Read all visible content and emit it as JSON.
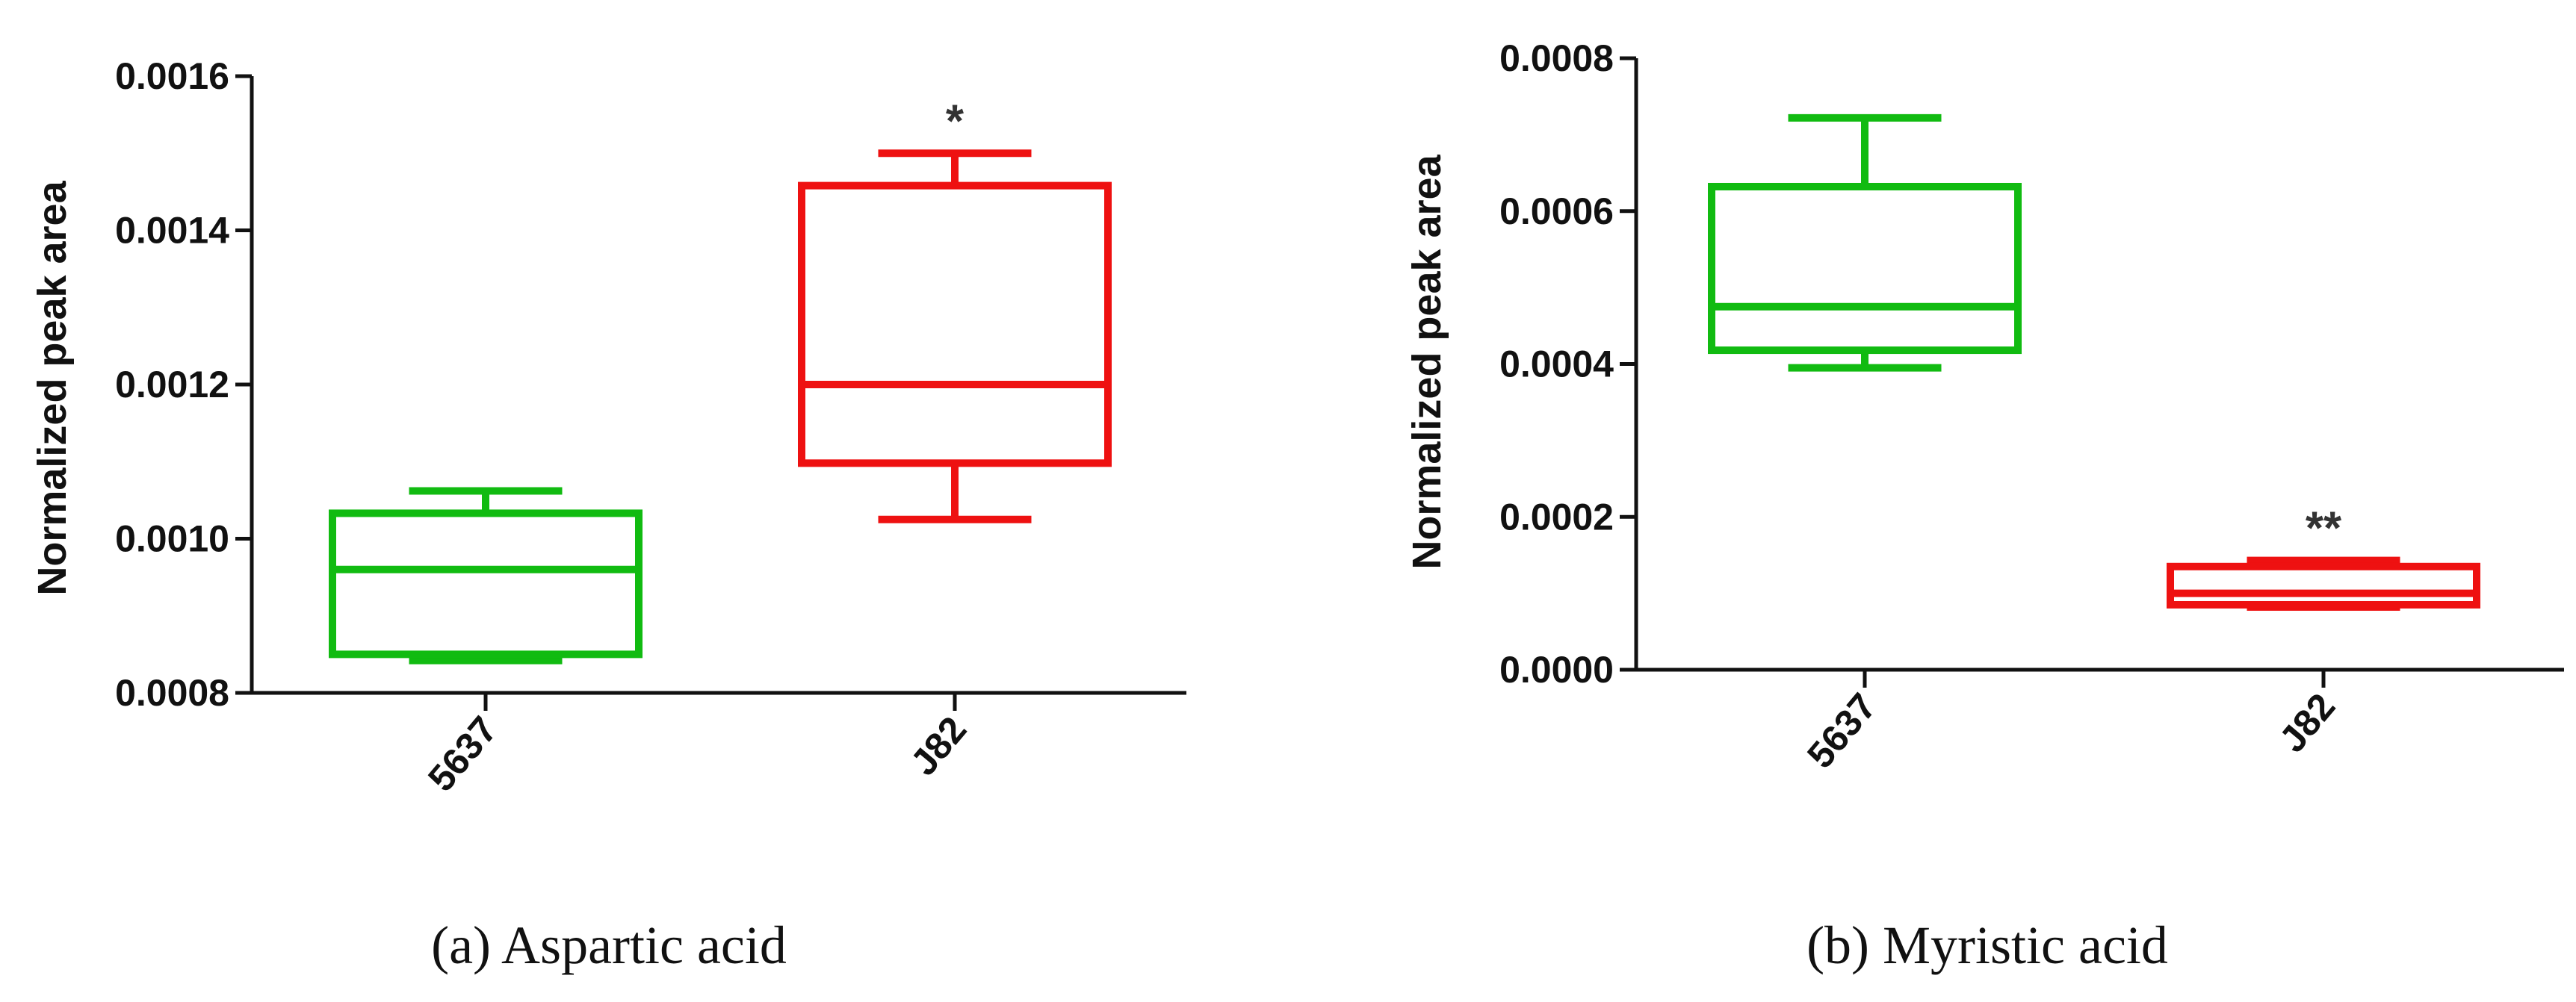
{
  "chart_data": [
    {
      "type": "box",
      "caption": "(a) Aspartic acid",
      "ylabel": "Normalized peak area",
      "xlabel": "",
      "ylim": [
        0.0008,
        0.0016
      ],
      "yticks": [
        "0.0008",
        "0.0010",
        "0.0012",
        "0.0014",
        "0.0016"
      ],
      "categories": [
        "5637",
        "J82"
      ],
      "boxes": [
        {
          "category": "5637",
          "min": 0.000842,
          "q1": 0.00085,
          "median": 0.00096,
          "q3": 0.001033,
          "max": 0.001062,
          "color": "#11bb11",
          "annotation": ""
        },
        {
          "category": "J82",
          "min": 0.001025,
          "q1": 0.001098,
          "median": 0.0012,
          "q3": 0.001458,
          "max": 0.0015,
          "color": "#ee1111",
          "annotation": "*"
        }
      ]
    },
    {
      "type": "box",
      "caption": "(b) Myristic acid",
      "ylabel": "Normalized peak area",
      "xlabel": "",
      "ylim": [
        0.0,
        0.0008
      ],
      "yticks": [
        "0.0000",
        "0.0002",
        "0.0004",
        "0.0006",
        "0.0008"
      ],
      "categories": [
        "5637",
        "J82"
      ],
      "boxes": [
        {
          "category": "5637",
          "min": 0.000395,
          "q1": 0.000418,
          "median": 0.000475,
          "q3": 0.000632,
          "max": 0.000722,
          "color": "#11bb11",
          "annotation": ""
        },
        {
          "category": "J82",
          "min": 8.2e-05,
          "q1": 8.5e-05,
          "median": 0.0001,
          "q3": 0.000135,
          "max": 0.000143,
          "color": "#ee1111",
          "annotation": "**"
        }
      ]
    }
  ]
}
